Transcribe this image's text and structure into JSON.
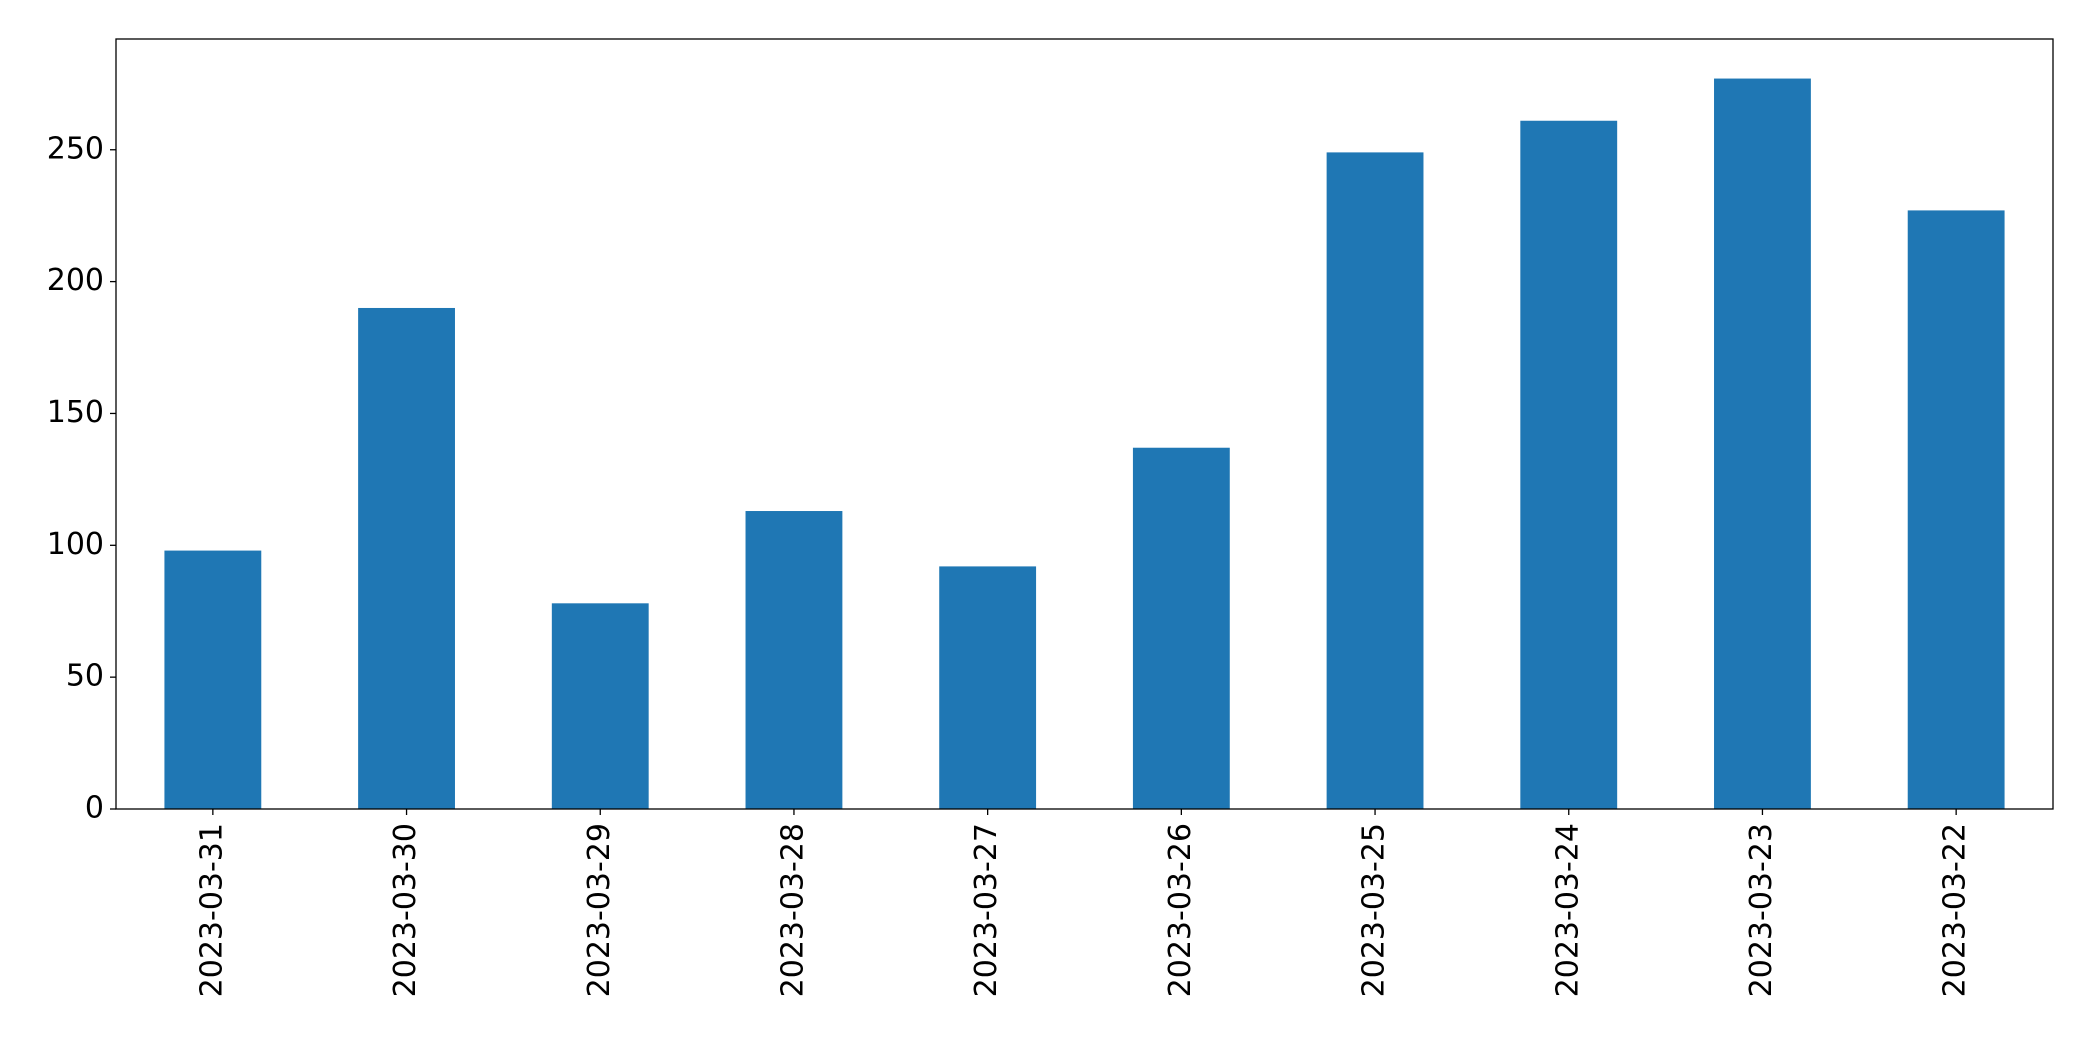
{
  "chart_data": {
    "type": "bar",
    "categories": [
      "2023-03-31",
      "2023-03-30",
      "2023-03-29",
      "2023-03-28",
      "2023-03-27",
      "2023-03-26",
      "2023-03-25",
      "2023-03-24",
      "2023-03-23",
      "2023-03-22"
    ],
    "values": [
      98,
      190,
      78,
      113,
      92,
      137,
      249,
      261,
      277,
      227
    ],
    "color": "#1f77b4",
    "ylim": [
      0,
      292
    ],
    "yticks": [
      0,
      50,
      100,
      150,
      200,
      250
    ],
    "grid": false
  }
}
